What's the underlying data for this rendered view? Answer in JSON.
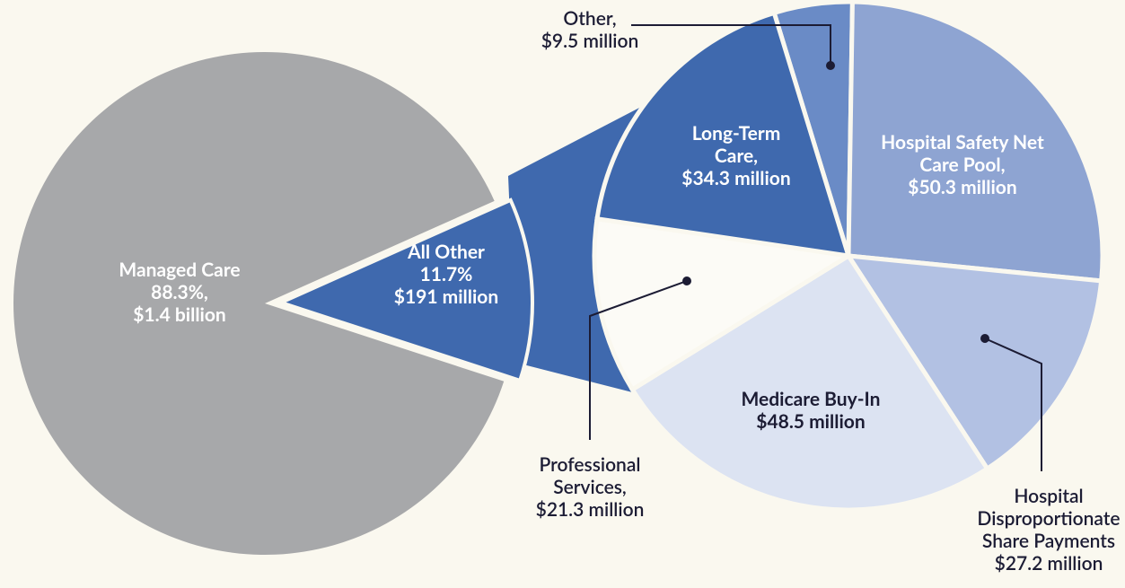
{
  "chart_data": [
    {
      "type": "pie",
      "categories": [
        "Managed Care",
        "All Other"
      ],
      "values": [
        88.3,
        11.7
      ],
      "value_labels": [
        "88.3%,",
        "11.7%"
      ],
      "amounts": [
        1400000000,
        191000000
      ],
      "amount_labels": [
        "$1.4 billion",
        "$191 million"
      ],
      "colors": [
        "#a7a8aa",
        "#3f69ae"
      ]
    },
    {
      "type": "pie",
      "categories": [
        "Other,",
        "Hospital Safety Net Care Pool,",
        "Hospital Disproportionate Share Payments",
        "Medicare Buy-In",
        "Professional Services,",
        "Long-Term Care,"
      ],
      "values": [
        9.5,
        50.3,
        27.2,
        48.5,
        21.3,
        34.3
      ],
      "value_labels": [
        "$9.5 million",
        "$50.3 million",
        "$27.2 million",
        "$48.5 million",
        "$21.3 million",
        "$34.3 million"
      ],
      "colors": [
        "#6a8bc6",
        "#8ea4d2",
        "#b2c1e3",
        "#dce3f2",
        "#fcfbf6",
        "#3f69ae"
      ]
    }
  ]
}
